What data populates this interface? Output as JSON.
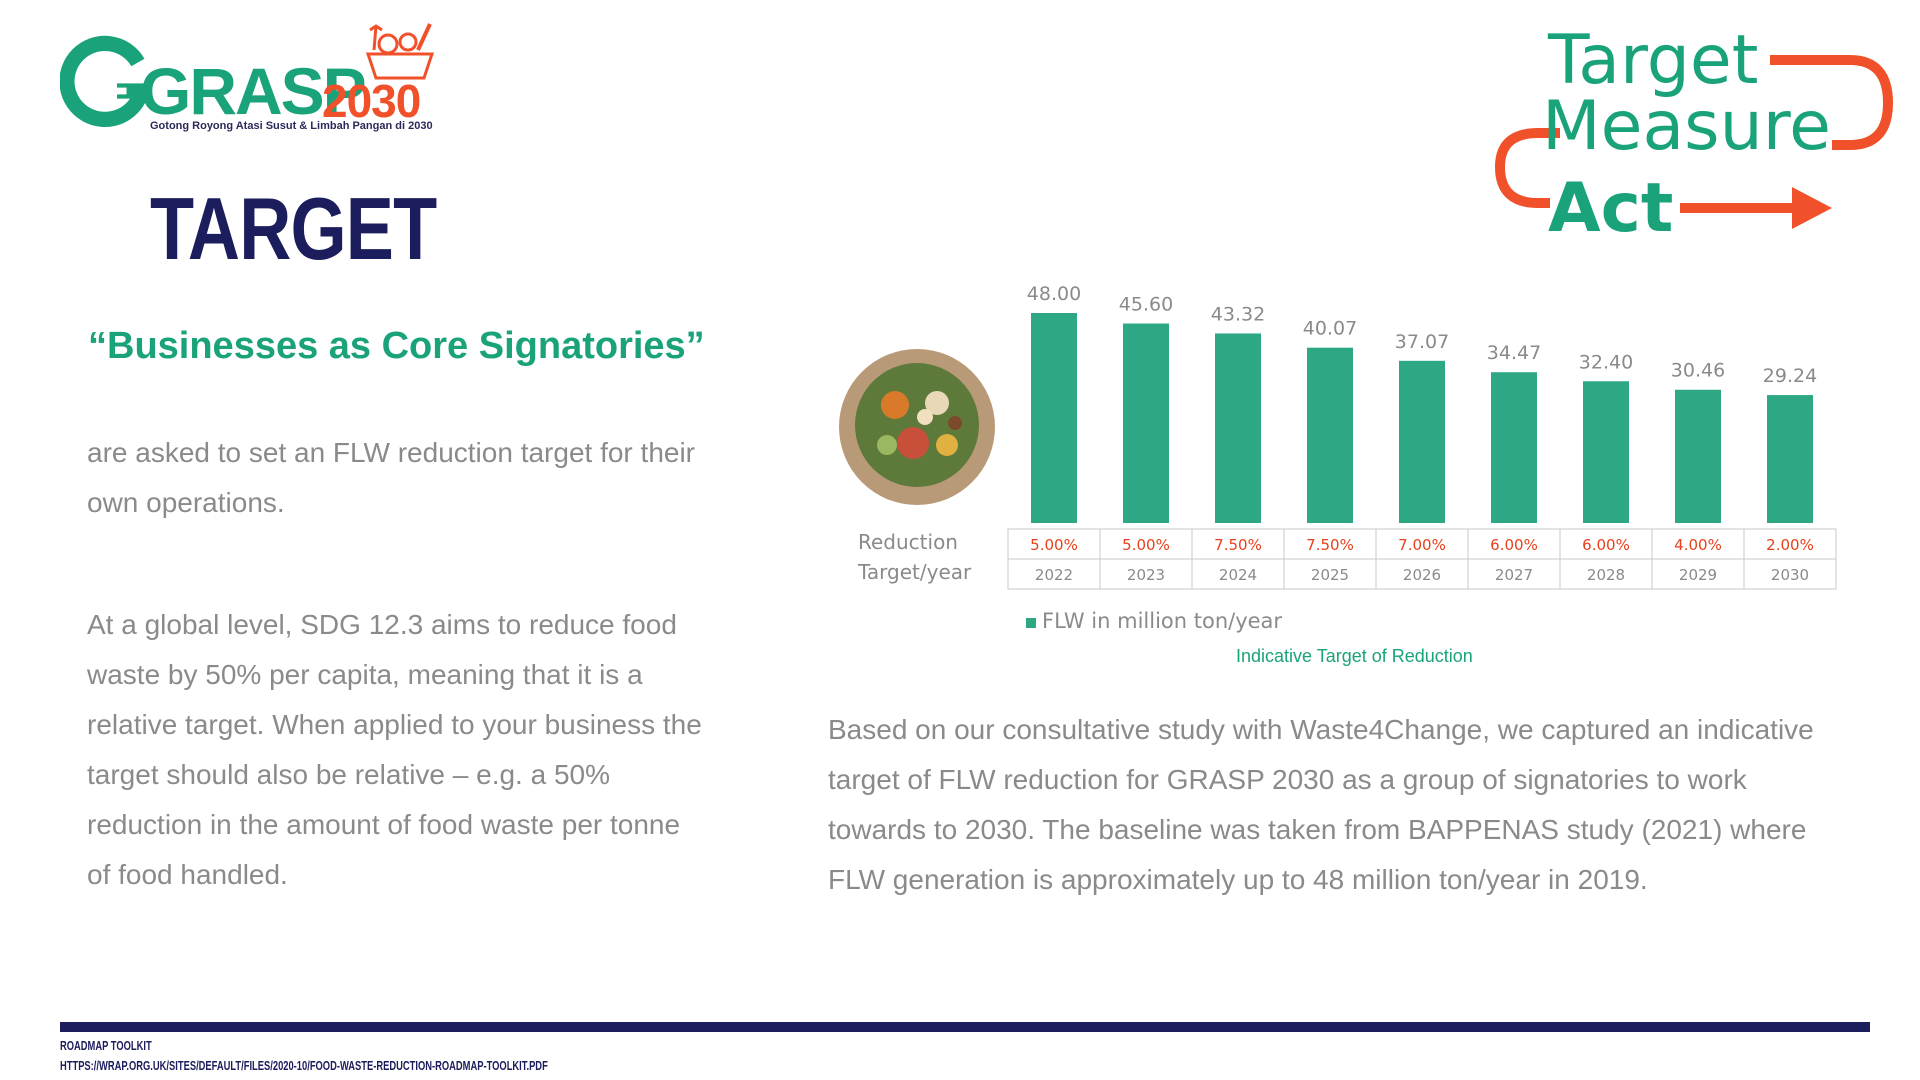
{
  "logo": {
    "word": "GRASP",
    "year": "2030",
    "tagline": "Gotong Royong Atasi Susut & Limbah Pangan di 2030"
  },
  "tma": {
    "target": "Target",
    "measure": "Measure",
    "act": "Act"
  },
  "page": {
    "title": "TARGET",
    "subtitle": "“Businesses as Core Signatories”",
    "para1": "are asked to set an FLW  reduction target for their own  operations.",
    "para2": "At a global level, SDG 12.3 aims to  reduce food waste by 50% per  capita, meaning that it is a relative  target. When applied to your  business the target should also be relative – e.g. a 50% reduction in  the amount of food waste per  tonne of food handled.",
    "para3": "Based on our consultative study with Waste4Change, we captured an indicative target of FLW reduction for GRASP 2030 as a group of signatories  to work towards to 2030. The baseline was taken from BAPPENAS study  (2021) where FLW generation is approximately up to 48 million ton/year in  2019.",
    "caption": "Indicative Target of Reduction"
  },
  "chart_data": {
    "type": "bar",
    "categories": [
      "2022",
      "2023",
      "2024",
      "2025",
      "2026",
      "2027",
      "2028",
      "2029",
      "2030"
    ],
    "series": [
      {
        "name": "FLW in million ton/year",
        "values": [
          48.0,
          45.6,
          43.32,
          40.07,
          37.07,
          34.47,
          32.4,
          30.46,
          29.24
        ]
      }
    ],
    "value_labels": [
      "48.00",
      "45.60",
      "43.32",
      "40.07",
      "37.07",
      "34.47",
      "32.40",
      "30.46",
      "29.24"
    ],
    "table_row_label_1": "Reduction",
    "table_row_label_2": "Target/year",
    "reduction_targets": [
      "5.00%",
      "5.00%",
      "7.50%",
      "7.50%",
      "7.00%",
      "6.00%",
      "6.00%",
      "4.00%",
      "2.00%"
    ],
    "legend_label": "FLW in million ton/year",
    "ylim": [
      0,
      48
    ],
    "bar_color": "#2ea884",
    "target_color": "#e8401c",
    "grid": false,
    "legend_position": "bottom-left"
  },
  "footer": {
    "line1": "Roadmap toolkit",
    "line2": "https://wrap.org.uk/sites/default/files/2020-10/Food-Waste-Reduction-Roadmap-Toolkit.pdf"
  }
}
